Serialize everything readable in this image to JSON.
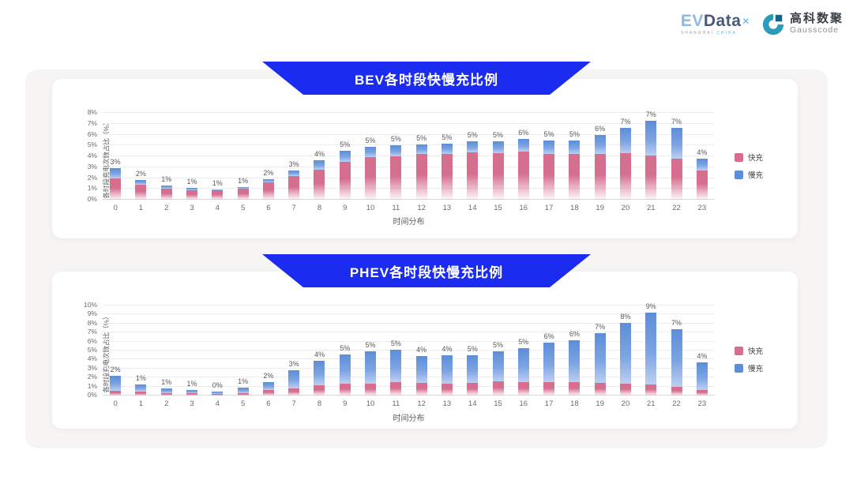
{
  "header": {
    "evdata": {
      "ev": "EV",
      "data": "Data",
      "mark": "✕",
      "sub1": "SHANGHAI",
      "sub2": "CHINA"
    },
    "gausscode": {
      "cn": "高科数聚",
      "en": "Gausscode"
    }
  },
  "colors": {
    "banner_blue": "#1b2cf0",
    "fast_pink": "#d76e8e",
    "slow_blue": "#5d8fd8",
    "panel_gray": "#f6f5f4"
  },
  "chart_data": [
    {
      "type": "bar",
      "stacked": true,
      "title": "BEV各时段快慢充比例",
      "ylabel": "各时段充电次数占比（%）",
      "xlabel": "时间分布",
      "ylim": [
        0,
        8
      ],
      "y_tick_labels": [
        "0%",
        "1%",
        "2%",
        "3%",
        "4%",
        "5%",
        "6%",
        "7%",
        "8%"
      ],
      "grid": true,
      "legend_position": "right",
      "categories": [
        "0",
        "1",
        "2",
        "3",
        "4",
        "5",
        "6",
        "7",
        "8",
        "9",
        "10",
        "11",
        "12",
        "13",
        "14",
        "15",
        "16",
        "17",
        "18",
        "19",
        "20",
        "21",
        "22",
        "23"
      ],
      "labels": [
        "3%",
        "2%",
        "1%",
        "1%",
        "1%",
        "1%",
        "2%",
        "3%",
        "4%",
        "5%",
        "5%",
        "5%",
        "5%",
        "5%",
        "5%",
        "5%",
        "6%",
        "5%",
        "5%",
        "6%",
        "7%",
        "7%",
        "7%",
        "4%"
      ],
      "series": [
        {
          "name": "快充",
          "color": "#d76e8e",
          "values": [
            2.0,
            1.4,
            1.0,
            0.9,
            0.85,
            1.0,
            1.6,
            2.2,
            2.8,
            3.5,
            3.9,
            4.0,
            4.2,
            4.25,
            4.4,
            4.3,
            4.45,
            4.2,
            4.2,
            4.25,
            4.3,
            4.1,
            3.8,
            2.7
          ]
        },
        {
          "name": "慢充",
          "color": "#5d8fd8",
          "values": [
            0.9,
            0.45,
            0.3,
            0.2,
            0.1,
            0.2,
            0.3,
            0.5,
            0.85,
            1.0,
            1.0,
            1.05,
            0.9,
            0.95,
            1.0,
            1.1,
            1.15,
            1.25,
            1.25,
            1.75,
            2.3,
            3.2,
            2.8,
            1.1
          ]
        }
      ]
    },
    {
      "type": "bar",
      "stacked": true,
      "title": "PHEV各时段快慢充比例",
      "ylabel": "各时段充电次数占比（%）",
      "xlabel": "时间分布",
      "ylim": [
        0,
        10
      ],
      "y_tick_labels": [
        "0%",
        "1%",
        "2%",
        "3%",
        "4%",
        "5%",
        "6%",
        "7%",
        "8%",
        "9%",
        "10%"
      ],
      "grid": true,
      "legend_position": "right",
      "categories": [
        "0",
        "1",
        "2",
        "3",
        "4",
        "5",
        "6",
        "7",
        "8",
        "9",
        "10",
        "11",
        "12",
        "13",
        "14",
        "15",
        "16",
        "17",
        "18",
        "19",
        "20",
        "21",
        "22",
        "23"
      ],
      "labels": [
        "2%",
        "1%",
        "1%",
        "1%",
        "0%",
        "1%",
        "2%",
        "3%",
        "4%",
        "5%",
        "5%",
        "5%",
        "4%",
        "4%",
        "5%",
        "5%",
        "5%",
        "6%",
        "6%",
        "7%",
        "8%",
        "9%",
        "7%",
        "4%"
      ],
      "series": [
        {
          "name": "快充",
          "color": "#d76e8e",
          "values": [
            0.5,
            0.4,
            0.3,
            0.25,
            0.2,
            0.3,
            0.6,
            0.8,
            1.1,
            1.3,
            1.35,
            1.5,
            1.4,
            1.3,
            1.4,
            1.6,
            1.5,
            1.5,
            1.5,
            1.4,
            1.3,
            1.2,
            1.0,
            0.6
          ]
        },
        {
          "name": "慢充",
          "color": "#5d8fd8",
          "values": [
            1.7,
            0.8,
            0.5,
            0.35,
            0.25,
            0.55,
            0.9,
            2.0,
            2.8,
            3.3,
            3.55,
            3.6,
            3.0,
            3.15,
            3.1,
            3.3,
            3.8,
            4.4,
            4.6,
            5.5,
            6.8,
            8.0,
            6.4,
            3.1
          ]
        }
      ]
    }
  ]
}
